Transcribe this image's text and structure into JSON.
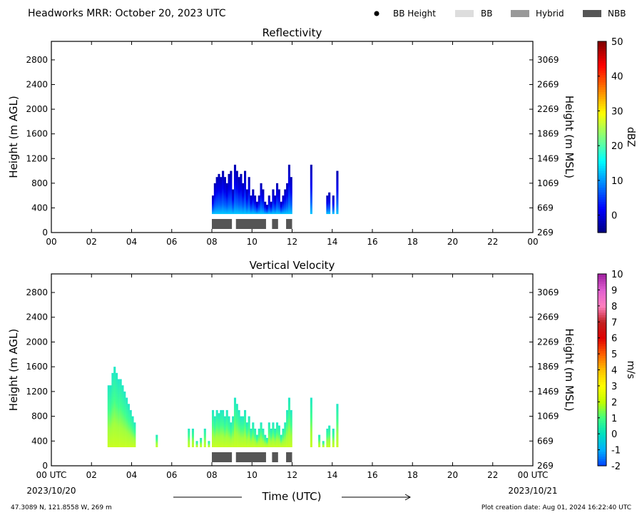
{
  "header": {
    "title": "Headworks MRR:  October 20, 2023 UTC",
    "legend": [
      {
        "label": "BB Height",
        "symbol": "dot",
        "color": "#000000"
      },
      {
        "label": "BB",
        "symbol": "rect",
        "color": "#dddddd"
      },
      {
        "label": "Hybrid",
        "symbol": "rect",
        "color": "#999999"
      },
      {
        "label": "NBB",
        "symbol": "rect",
        "color": "#555555"
      }
    ]
  },
  "footer": {
    "location": "47.3089 N, 121.8558 W, 269 m",
    "created": "Plot creation date: Aug 01, 2024 16:22:40 UTC",
    "xlabel": "Time (UTC)",
    "start_date": "2023/10/20",
    "end_date": "2023/10/21"
  },
  "chart_data": [
    {
      "type": "heatmap",
      "title": "Reflectivity",
      "ylabel": "Height (m AGL)",
      "ylabel_right": "Height (m MSL)",
      "xlim": [
        0,
        24
      ],
      "ylim": [
        0,
        3100
      ],
      "x_ticks": [
        "00",
        "02",
        "04",
        "06",
        "08",
        "10",
        "12",
        "14",
        "16",
        "18",
        "20",
        "22",
        "00"
      ],
      "y_ticks": [
        0,
        400,
        800,
        1200,
        1600,
        2000,
        2400,
        2800
      ],
      "y_ticks_right": [
        269,
        669,
        1069,
        1469,
        1869,
        2269,
        2669,
        3069
      ],
      "colorbar": {
        "label": "dBZ",
        "min": -5,
        "max": 50,
        "ticks": [
          0,
          10,
          20,
          30,
          40,
          50
        ],
        "colors": [
          "#00007f",
          "#0000ff",
          "#0080ff",
          "#00ffff",
          "#80ff80",
          "#ffff00",
          "#ff8000",
          "#ff0000",
          "#7f0000"
        ]
      },
      "columns": [
        [
          8.0,
          600
        ],
        [
          8.1,
          800
        ],
        [
          8.2,
          900
        ],
        [
          8.3,
          950
        ],
        [
          8.4,
          900
        ],
        [
          8.5,
          1000
        ],
        [
          8.6,
          900
        ],
        [
          8.7,
          800
        ],
        [
          8.8,
          950
        ],
        [
          8.9,
          1000
        ],
        [
          9.0,
          700
        ],
        [
          9.1,
          1100
        ],
        [
          9.2,
          1000
        ],
        [
          9.3,
          900
        ],
        [
          9.4,
          950
        ],
        [
          9.5,
          800
        ],
        [
          9.6,
          1000
        ],
        [
          9.7,
          700
        ],
        [
          9.8,
          900
        ],
        [
          9.9,
          600
        ],
        [
          10.0,
          700
        ],
        [
          10.1,
          600
        ],
        [
          10.2,
          500
        ],
        [
          10.3,
          600
        ],
        [
          10.4,
          800
        ],
        [
          10.5,
          700
        ],
        [
          10.6,
          500
        ],
        [
          10.7,
          450
        ],
        [
          10.8,
          600
        ],
        [
          10.9,
          500
        ],
        [
          11.0,
          700
        ],
        [
          11.1,
          600
        ],
        [
          11.2,
          800
        ],
        [
          11.3,
          700
        ],
        [
          11.4,
          500
        ],
        [
          11.5,
          600
        ],
        [
          11.6,
          700
        ],
        [
          11.7,
          800
        ],
        [
          11.8,
          1100
        ],
        [
          11.9,
          900
        ],
        [
          12.9,
          1100
        ],
        [
          13.5,
          300
        ],
        [
          13.7,
          600
        ],
        [
          13.8,
          650
        ],
        [
          14.0,
          600
        ],
        [
          14.2,
          1000
        ]
      ],
      "qc_bar": {
        "color": "#555555",
        "ranges": [
          [
            8.0,
            9.0
          ],
          [
            9.2,
            10.7
          ],
          [
            11.0,
            11.3
          ],
          [
            11.7,
            12.0
          ]
        ]
      }
    },
    {
      "type": "heatmap",
      "title": "Vertical Velocity",
      "ylabel": "Height (m AGL)",
      "ylabel_right": "Height (m MSL)",
      "xlim": [
        0,
        24
      ],
      "ylim": [
        0,
        3100
      ],
      "x_ticks": [
        "00 UTC",
        "02",
        "04",
        "06",
        "08",
        "10",
        "12",
        "14",
        "16",
        "18",
        "20",
        "22",
        "00 UTC"
      ],
      "y_ticks": [
        0,
        400,
        800,
        1200,
        1600,
        2000,
        2400,
        2800
      ],
      "y_ticks_right": [
        269,
        669,
        1069,
        1469,
        1869,
        2269,
        2669,
        3069
      ],
      "colorbar": {
        "label": "m/s",
        "min": -2,
        "max": 10,
        "ticks": [
          -2,
          -1,
          0,
          1,
          2,
          3,
          4,
          5,
          6,
          7,
          8,
          9,
          10
        ],
        "colors": [
          "#0040ff",
          "#00b0ff",
          "#00e0c0",
          "#40ff80",
          "#c0ff00",
          "#ffff00",
          "#ffc000",
          "#ff6000",
          "#e00000",
          "#c02020",
          "#ff80c0",
          "#e060d0",
          "#a020a0"
        ]
      },
      "columns": [
        [
          2.8,
          1300
        ],
        [
          2.9,
          1300
        ],
        [
          3.0,
          1500
        ],
        [
          3.1,
          1600
        ],
        [
          3.2,
          1500
        ],
        [
          3.3,
          1400
        ],
        [
          3.4,
          1400
        ],
        [
          3.5,
          1300
        ],
        [
          3.6,
          1200
        ],
        [
          3.7,
          1100
        ],
        [
          3.8,
          1000
        ],
        [
          3.9,
          900
        ],
        [
          4.0,
          800
        ],
        [
          4.1,
          700
        ],
        [
          5.2,
          500
        ],
        [
          6.8,
          600
        ],
        [
          7.0,
          600
        ],
        [
          7.2,
          400
        ],
        [
          7.4,
          450
        ],
        [
          7.6,
          600
        ],
        [
          7.8,
          400
        ],
        [
          8.0,
          900
        ],
        [
          8.1,
          800
        ],
        [
          8.2,
          900
        ],
        [
          8.3,
          850
        ],
        [
          8.4,
          900
        ],
        [
          8.5,
          900
        ],
        [
          8.6,
          800
        ],
        [
          8.7,
          900
        ],
        [
          8.8,
          800
        ],
        [
          8.9,
          700
        ],
        [
          9.0,
          800
        ],
        [
          9.1,
          1100
        ],
        [
          9.2,
          1000
        ],
        [
          9.3,
          900
        ],
        [
          9.4,
          800
        ],
        [
          9.5,
          800
        ],
        [
          9.6,
          900
        ],
        [
          9.7,
          700
        ],
        [
          9.8,
          800
        ],
        [
          9.9,
          600
        ],
        [
          10.0,
          700
        ],
        [
          10.1,
          600
        ],
        [
          10.2,
          500
        ],
        [
          10.3,
          600
        ],
        [
          10.4,
          700
        ],
        [
          10.5,
          600
        ],
        [
          10.6,
          500
        ],
        [
          10.7,
          450
        ],
        [
          10.8,
          700
        ],
        [
          10.9,
          600
        ],
        [
          11.0,
          700
        ],
        [
          11.1,
          600
        ],
        [
          11.2,
          700
        ],
        [
          11.3,
          650
        ],
        [
          11.4,
          500
        ],
        [
          11.5,
          600
        ],
        [
          11.6,
          700
        ],
        [
          11.7,
          900
        ],
        [
          11.8,
          1100
        ],
        [
          11.9,
          900
        ],
        [
          12.9,
          1100
        ],
        [
          13.3,
          500
        ],
        [
          13.5,
          400
        ],
        [
          13.7,
          600
        ],
        [
          13.8,
          650
        ],
        [
          14.0,
          600
        ],
        [
          14.2,
          1000
        ]
      ],
      "qc_bar": {
        "color": "#555555",
        "ranges": [
          [
            8.0,
            9.0
          ],
          [
            9.2,
            10.7
          ],
          [
            11.0,
            11.3
          ],
          [
            11.7,
            12.0
          ]
        ]
      }
    }
  ]
}
